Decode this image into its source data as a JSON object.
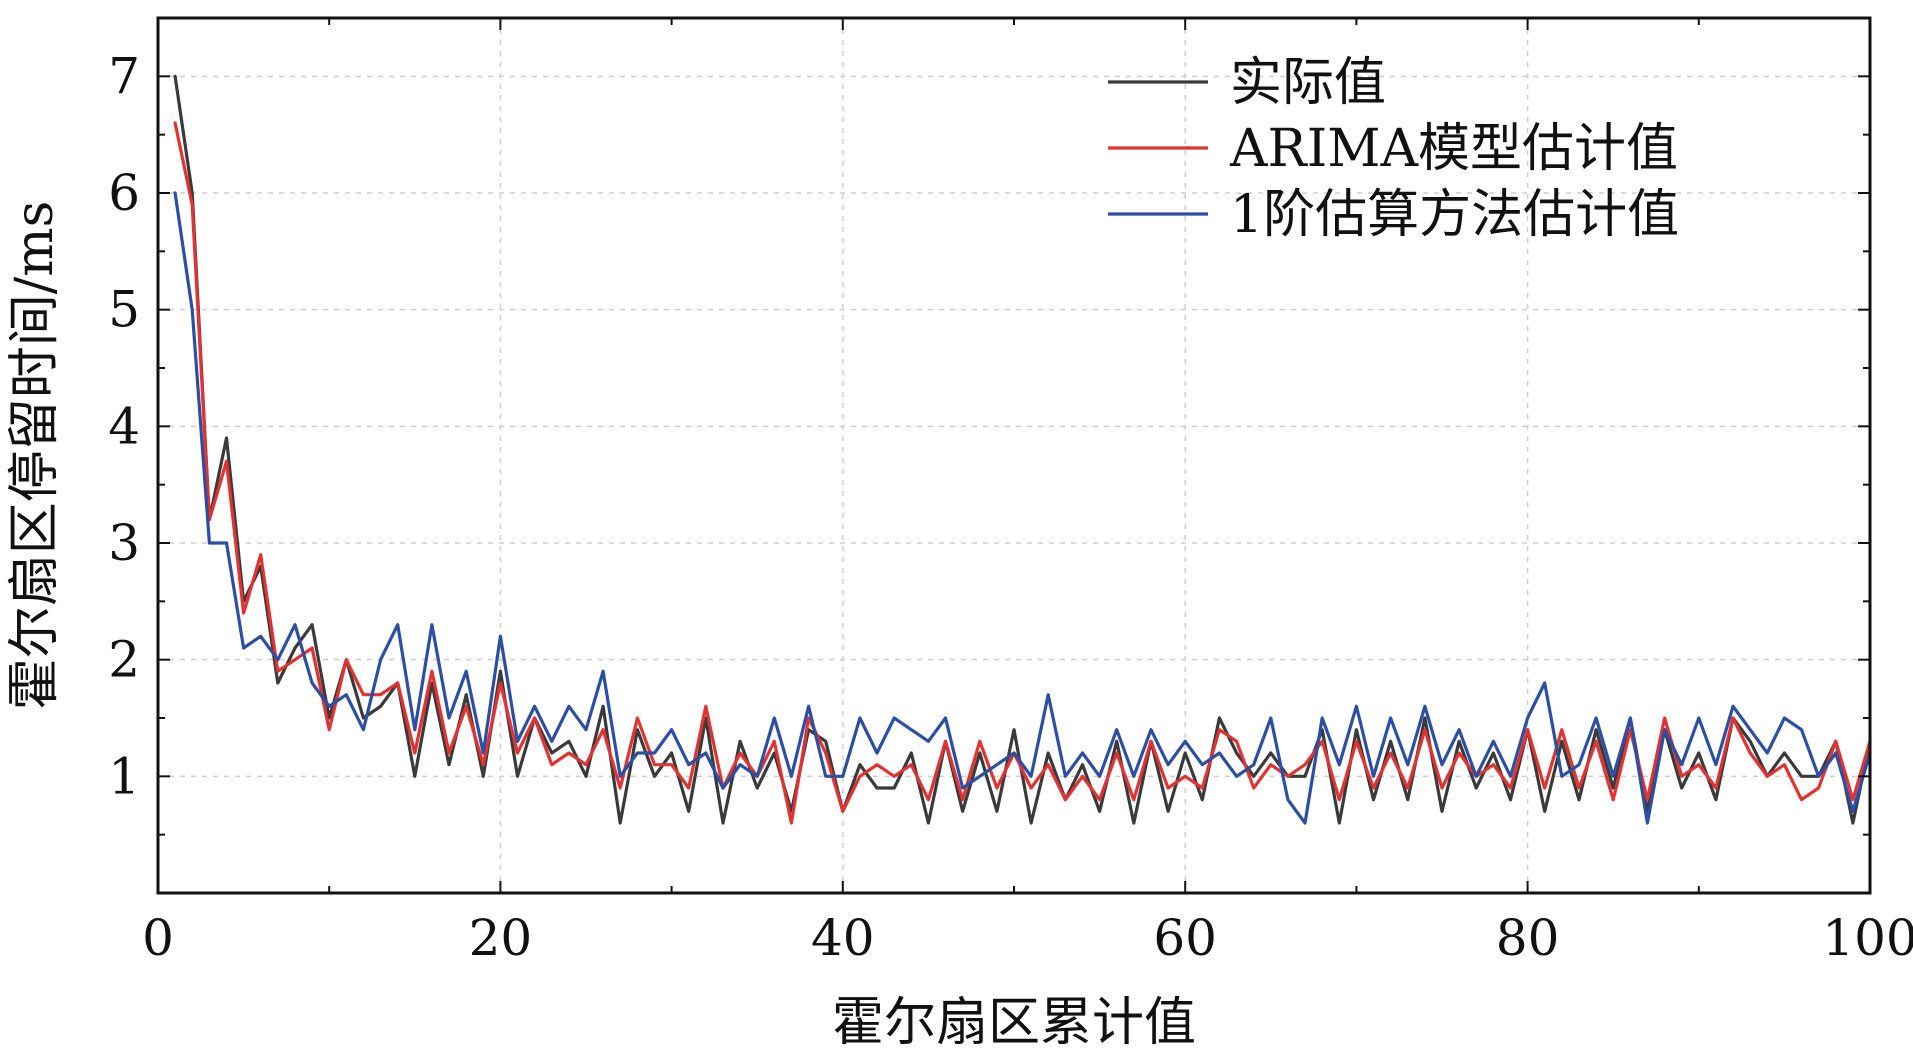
{
  "chart_data": {
    "type": "line",
    "title": "",
    "xlabel": "霍尔扇区累计值",
    "ylabel": "霍尔扇区停留时间/ms",
    "xlim": [
      0,
      100
    ],
    "ylim": [
      0,
      7.5
    ],
    "x_ticks": [
      "0",
      "20",
      "40",
      "60",
      "80",
      "100"
    ],
    "y_ticks": [
      "1",
      "2",
      "3",
      "4",
      "5",
      "6",
      "7"
    ],
    "grid": true,
    "legend_position": "top-right",
    "x": [
      1,
      2,
      3,
      4,
      5,
      6,
      7,
      8,
      9,
      10,
      11,
      12,
      13,
      14,
      15,
      16,
      17,
      18,
      19,
      20,
      21,
      22,
      23,
      24,
      25,
      26,
      27,
      28,
      29,
      30,
      31,
      32,
      33,
      34,
      35,
      36,
      37,
      38,
      39,
      40,
      41,
      42,
      43,
      44,
      45,
      46,
      47,
      48,
      49,
      50,
      51,
      52,
      53,
      54,
      55,
      56,
      57,
      58,
      59,
      60,
      61,
      62,
      63,
      64,
      65,
      66,
      67,
      68,
      69,
      70,
      71,
      72,
      73,
      74,
      75,
      76,
      77,
      78,
      79,
      80,
      81,
      82,
      83,
      84,
      85,
      86,
      87,
      88,
      89,
      90,
      91,
      92,
      93,
      94,
      95,
      96,
      97,
      98,
      99,
      100
    ],
    "series": [
      {
        "name": "实际值",
        "color": "#3a3a3a",
        "values": [
          7.0,
          6.0,
          3.2,
          3.9,
          2.5,
          2.8,
          1.8,
          2.1,
          2.3,
          1.5,
          2.0,
          1.5,
          1.6,
          1.8,
          1.0,
          1.8,
          1.1,
          1.7,
          1.0,
          1.9,
          1.0,
          1.5,
          1.2,
          1.3,
          1.0,
          1.6,
          0.6,
          1.4,
          1.0,
          1.2,
          0.7,
          1.5,
          0.6,
          1.3,
          0.9,
          1.2,
          0.7,
          1.4,
          1.3,
          0.7,
          1.1,
          0.9,
          0.9,
          1.2,
          0.6,
          1.3,
          0.7,
          1.2,
          0.7,
          1.4,
          0.6,
          1.2,
          0.8,
          1.1,
          0.7,
          1.3,
          0.6,
          1.3,
          0.7,
          1.2,
          0.8,
          1.5,
          1.2,
          1.0,
          1.2,
          1.0,
          1.0,
          1.4,
          0.6,
          1.4,
          0.8,
          1.3,
          0.8,
          1.5,
          0.7,
          1.3,
          0.9,
          1.2,
          0.8,
          1.4,
          0.7,
          1.3,
          0.8,
          1.4,
          0.9,
          1.5,
          0.7,
          1.4,
          0.9,
          1.2,
          0.8,
          1.5,
          1.3,
          1.0,
          1.2,
          1.0,
          1.0,
          1.3,
          0.6,
          1.3
        ]
      },
      {
        "name": "ARIMA模型估计值",
        "color": "#e23232",
        "values": [
          6.6,
          5.9,
          3.2,
          3.7,
          2.4,
          2.9,
          1.9,
          2.0,
          2.1,
          1.4,
          2.0,
          1.7,
          1.7,
          1.8,
          1.2,
          1.9,
          1.2,
          1.6,
          1.1,
          1.8,
          1.2,
          1.5,
          1.1,
          1.2,
          1.1,
          1.4,
          0.9,
          1.5,
          1.1,
          1.1,
          0.9,
          1.6,
          0.9,
          1.2,
          1.0,
          1.3,
          0.6,
          1.5,
          1.2,
          0.7,
          1.0,
          1.1,
          1.0,
          1.1,
          0.8,
          1.3,
          0.8,
          1.3,
          0.9,
          1.2,
          0.9,
          1.1,
          0.8,
          1.0,
          0.8,
          1.2,
          0.8,
          1.3,
          0.9,
          1.0,
          0.9,
          1.4,
          1.3,
          0.9,
          1.1,
          1.0,
          1.1,
          1.3,
          0.8,
          1.3,
          0.9,
          1.2,
          0.9,
          1.4,
          0.9,
          1.2,
          1.0,
          1.1,
          0.9,
          1.4,
          0.9,
          1.4,
          0.9,
          1.3,
          0.8,
          1.4,
          0.8,
          1.5,
          1.0,
          1.1,
          0.9,
          1.5,
          1.2,
          1.0,
          1.1,
          0.8,
          0.9,
          1.3,
          0.8,
          1.3
        ]
      },
      {
        "name": "1阶估算方法估计值",
        "color": "#2c4fa3",
        "values": [
          6.0,
          5.0,
          3.0,
          3.0,
          2.1,
          2.2,
          2.0,
          2.3,
          1.8,
          1.6,
          1.7,
          1.4,
          2.0,
          2.3,
          1.4,
          2.3,
          1.5,
          1.9,
          1.2,
          2.2,
          1.3,
          1.6,
          1.3,
          1.6,
          1.4,
          1.9,
          1.0,
          1.2,
          1.2,
          1.4,
          1.1,
          1.2,
          0.9,
          1.1,
          1.0,
          1.5,
          1.0,
          1.6,
          1.0,
          1.0,
          1.5,
          1.2,
          1.5,
          1.4,
          1.3,
          1.5,
          0.9,
          1.0,
          1.1,
          1.2,
          1.0,
          1.7,
          1.0,
          1.2,
          1.0,
          1.4,
          1.0,
          1.4,
          1.1,
          1.3,
          1.1,
          1.2,
          1.0,
          1.1,
          1.5,
          0.8,
          0.6,
          1.5,
          1.1,
          1.6,
          1.0,
          1.5,
          1.1,
          1.6,
          1.1,
          1.4,
          1.0,
          1.3,
          1.0,
          1.5,
          1.8,
          1.0,
          1.1,
          1.5,
          1.0,
          1.5,
          0.6,
          1.4,
          1.1,
          1.5,
          1.1,
          1.6,
          1.4,
          1.2,
          1.5,
          1.4,
          1.0,
          1.2,
          0.7,
          1.2
        ]
      }
    ]
  }
}
